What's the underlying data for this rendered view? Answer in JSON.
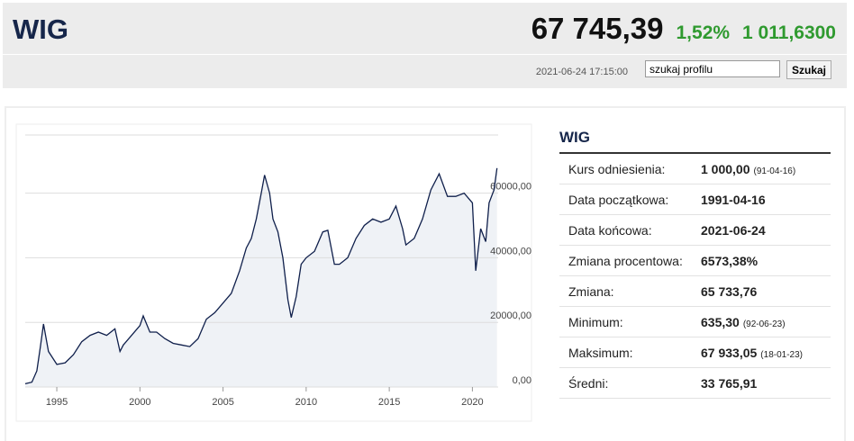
{
  "header": {
    "title": "WIG",
    "last": "67 745,39",
    "change_pct": "1,52%",
    "change": "1 011,6300",
    "timestamp": "2021-06-24 17:15:00",
    "search_placeholder": "szukaj profilu",
    "search_button": "Szukaj"
  },
  "chart_data": {
    "type": "line",
    "x": [
      1993.1,
      1993.5,
      1993.8,
      1994.0,
      1994.2,
      1994.5,
      1995.0,
      1995.5,
      1996.0,
      1996.5,
      1997.0,
      1997.5,
      1998.0,
      1998.5,
      1998.8,
      1999.0,
      1999.5,
      2000.0,
      2000.2,
      2000.6,
      2001.0,
      2001.5,
      2002.0,
      2002.5,
      2003.0,
      2003.5,
      2004.0,
      2004.5,
      2005.0,
      2005.5,
      2006.0,
      2006.4,
      2006.7,
      2007.0,
      2007.3,
      2007.5,
      2007.8,
      2008.0,
      2008.3,
      2008.6,
      2008.9,
      2009.1,
      2009.4,
      2009.7,
      2010.0,
      2010.5,
      2011.0,
      2011.3,
      2011.7,
      2012.0,
      2012.5,
      2013.0,
      2013.5,
      2014.0,
      2014.5,
      2015.0,
      2015.4,
      2015.8,
      2016.0,
      2016.5,
      2017.0,
      2017.5,
      2018.0,
      2018.5,
      2019.0,
      2019.5,
      2020.0,
      2020.2,
      2020.5,
      2020.8,
      2021.0,
      2021.3,
      2021.48
    ],
    "series": [
      {
        "name": "WIG",
        "color": "#0f1f4b",
        "values": [
          1000,
          1500,
          5000,
          12000,
          19500,
          11000,
          7000,
          7500,
          10000,
          14000,
          16000,
          17000,
          16000,
          18000,
          11000,
          13000,
          16000,
          19000,
          22000,
          17000,
          17000,
          15000,
          13500,
          13000,
          12500,
          15000,
          21000,
          23000,
          26000,
          29000,
          36000,
          43000,
          46000,
          52000,
          60000,
          65600,
          60000,
          52000,
          48000,
          40000,
          27000,
          21500,
          28000,
          38000,
          40000,
          42000,
          48000,
          48500,
          38000,
          38000,
          40000,
          46000,
          50000,
          52000,
          51000,
          52000,
          56000,
          49000,
          44000,
          46000,
          52000,
          61000,
          66000,
          59000,
          59000,
          60000,
          57000,
          36000,
          49000,
          45000,
          57000,
          61000,
          67745
        ]
      }
    ],
    "xlim": [
      1993.1,
      2021.55
    ],
    "xticks": [
      1995,
      2000,
      2005,
      2010,
      2015,
      2020
    ],
    "ylim": [
      0,
      78000
    ],
    "yticks": [
      {
        "value": 0,
        "label": "0,00"
      },
      {
        "value": 20000,
        "label": "20000,00"
      },
      {
        "value": 40000,
        "label": "40000,00"
      },
      {
        "value": 60000,
        "label": "60000,00"
      }
    ],
    "grid": true,
    "fill": "#eff2f6"
  },
  "table": {
    "title": "WIG",
    "rows": [
      {
        "label": "Kurs odniesienia:",
        "value": "1 000,00",
        "date": "(91-04-16)"
      },
      {
        "label": "Data początkowa:",
        "value": "1991-04-16"
      },
      {
        "label": "Data końcowa:",
        "value": "2021-06-24"
      },
      {
        "label": "Zmiana procentowa:",
        "value": "6573,38%"
      },
      {
        "label": "Zmiana:",
        "value": "65 733,76"
      },
      {
        "label": "Minimum:",
        "value": "635,30",
        "date": "(92-06-23)"
      },
      {
        "label": "Maksimum:",
        "value": "67 933,05",
        "date": "(18-01-23)"
      },
      {
        "label": "Średni:",
        "value": "33 765,91"
      }
    ]
  }
}
